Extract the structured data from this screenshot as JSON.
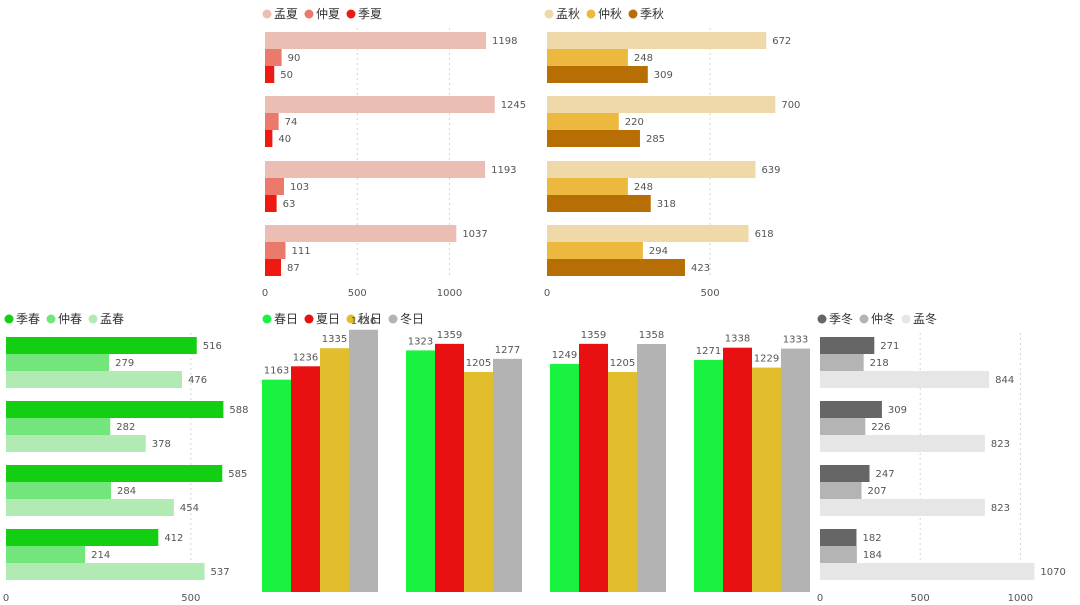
{
  "chart_data": [
    {
      "id": "summer",
      "type": "bar",
      "orientation": "horizontal",
      "categories": [
        "",
        "",
        "",
        ""
      ],
      "series": [
        {
          "name": "孟夏",
          "color": "#ECBDB2",
          "values": [
            1198,
            1245,
            1193,
            1037
          ]
        },
        {
          "name": "仲夏",
          "color": "#EC7A6C",
          "values": [
            90,
            74,
            103,
            111
          ]
        },
        {
          "name": "季夏",
          "color": "#EE1A12",
          "values": [
            50,
            40,
            63,
            87
          ]
        }
      ],
      "xlim": [
        0,
        1200
      ],
      "xticks": [
        0,
        500,
        1000
      ],
      "grid": true,
      "legend": "top-left"
    },
    {
      "id": "autumn",
      "type": "bar",
      "orientation": "horizontal",
      "categories": [
        "",
        "",
        "",
        ""
      ],
      "series": [
        {
          "name": "孟秋",
          "color": "#EFD9A8",
          "values": [
            672,
            700,
            639,
            618
          ]
        },
        {
          "name": "仲秋",
          "color": "#ECB83E",
          "values": [
            248,
            220,
            248,
            294
          ]
        },
        {
          "name": "季秋",
          "color": "#B76F05",
          "values": [
            309,
            285,
            318,
            423
          ]
        }
      ],
      "xlim": [
        0,
        700
      ],
      "xticks": [
        0,
        500
      ],
      "grid": true,
      "legend": "top-left"
    },
    {
      "id": "spring",
      "type": "bar",
      "orientation": "horizontal",
      "categories": [
        "",
        "",
        "",
        ""
      ],
      "series": [
        {
          "name": "季春",
          "color": "#12CF12",
          "values": [
            516,
            588,
            585,
            412
          ]
        },
        {
          "name": "仲春",
          "color": "#73E67B",
          "values": [
            279,
            282,
            284,
            214
          ]
        },
        {
          "name": "孟春",
          "color": "#B1EAB3",
          "values": [
            476,
            378,
            454,
            537
          ]
        }
      ],
      "xlim": [
        0,
        588
      ],
      "xticks": [
        0,
        500
      ],
      "grid": true,
      "legend": "top-left"
    },
    {
      "id": "days",
      "type": "bar",
      "orientation": "vertical",
      "categories": [
        "",
        "",
        "",
        ""
      ],
      "series": [
        {
          "name": "春日",
          "color": "#19F240",
          "values": [
            1163,
            1323,
            1249,
            1271
          ]
        },
        {
          "name": "夏日",
          "color": "#E81010",
          "values": [
            1236,
            1359,
            1359,
            1338
          ]
        },
        {
          "name": "秋日",
          "color": "#E2BE2E",
          "values": [
            1335,
            1205,
            1205,
            1229
          ]
        },
        {
          "name": "冬日",
          "color": "#B3B3B3",
          "values": [
            1436,
            1277,
            1358,
            1333
          ]
        }
      ],
      "ylim": [
        0,
        1436
      ],
      "grid": false,
      "legend": "top-left"
    },
    {
      "id": "winter",
      "type": "bar",
      "orientation": "horizontal",
      "categories": [
        "",
        "",
        "",
        ""
      ],
      "series": [
        {
          "name": "季冬",
          "color": "#666666",
          "values": [
            271,
            309,
            247,
            182
          ]
        },
        {
          "name": "仲冬",
          "color": "#B4B4B4",
          "values": [
            218,
            226,
            207,
            184
          ]
        },
        {
          "name": "孟冬",
          "color": "#E6E6E6",
          "values": [
            844,
            823,
            823,
            1070
          ]
        }
      ],
      "xlim": [
        0,
        1070
      ],
      "xticks": [
        0,
        500,
        1000
      ],
      "grid": true,
      "legend": "top-left"
    }
  ]
}
